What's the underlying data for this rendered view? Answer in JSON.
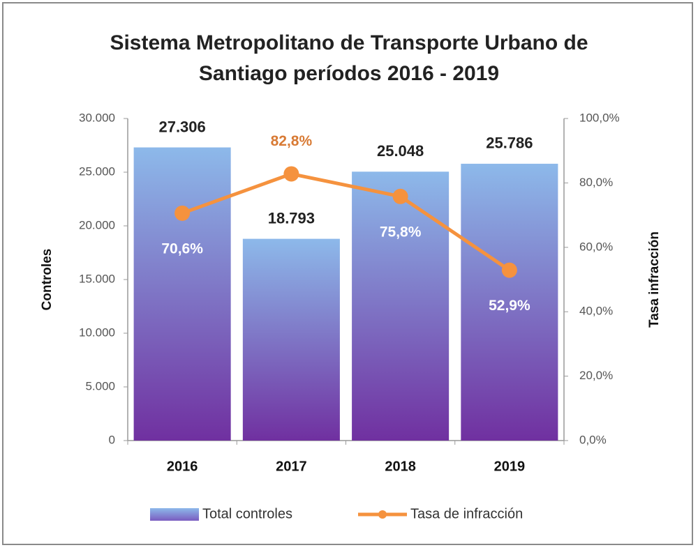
{
  "chart_data": {
    "type": "bar",
    "title": "Sistema Metropolitano de Transporte Urbano de Santiago períodos 2016 - 2019",
    "ylabel": "Controles",
    "y2label": "Tasa infracción",
    "categories": [
      "2016",
      "2017",
      "2018",
      "2019"
    ],
    "series": [
      {
        "name": "Total controles",
        "color": "#8db9ea",
        "values": [
          27306,
          18793,
          25048,
          25786
        ],
        "value_labels": [
          "27.306",
          "18.793",
          "25.048",
          "25.786"
        ]
      },
      {
        "name": "Tasa de infracción",
        "color": "#f5923e",
        "type": "line",
        "axis": "y2",
        "values": [
          70.6,
          82.8,
          75.8,
          52.9
        ],
        "value_labels": [
          "70,6%",
          "82,8%",
          "75,8%",
          "52,9%"
        ]
      }
    ],
    "ylim": [
      0,
      30000
    ],
    "yticks": [
      0,
      {
        "value": 5000,
        "label": "5.000"
      },
      {
        "value": 10000,
        "label": "10.000"
      },
      {
        "value": 15000,
        "label": "15.000"
      },
      {
        "value": 20000,
        "label": "20.000"
      },
      {
        "value": 25000,
        "label": "25.000"
      },
      {
        "value": 30000,
        "label": "30.000"
      }
    ],
    "y2lim": [
      0,
      100
    ],
    "y2ticks": [
      {
        "value": 0,
        "label": "0,0%"
      },
      {
        "value": 20,
        "label": "20,0%"
      },
      {
        "value": 40,
        "label": "40,0%"
      },
      {
        "value": 60,
        "label": "60,0%"
      },
      {
        "value": 80,
        "label": "80,0%"
      },
      {
        "value": 100,
        "label": "100,0%"
      }
    ],
    "grid": false,
    "legend": "bottom"
  }
}
